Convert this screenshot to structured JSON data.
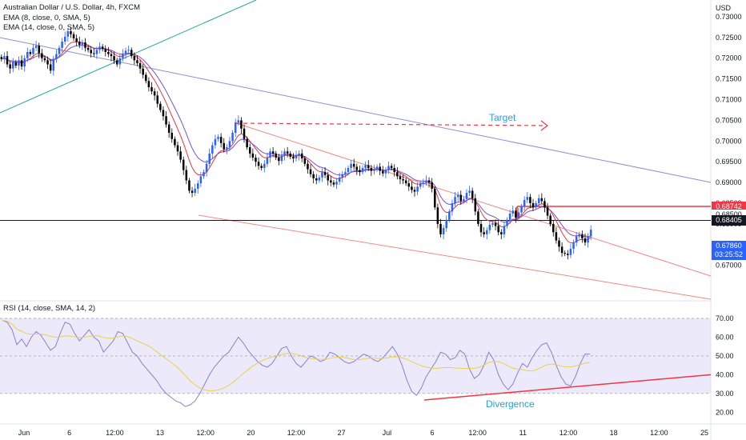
{
  "legend": {
    "symbol": "Australian Dollar / U.S. Dollar, 4h, FXCM",
    "ema_fast": "EMA (8, close, 0, SMA, 5)",
    "ema_slow": "EMA (14, close, 0, SMA, 5)",
    "rsi": "RSI (14, close, SMA, 14, 2)"
  },
  "colors": {
    "bull": "#2962ff",
    "bear": "#000000",
    "ema_fast": "#e0393e",
    "ema_slow": "#7b4fd6",
    "rsi_line": "#8a7fd1",
    "rsi_ma": "#e8d24a",
    "rsi_band": "#ece9fb",
    "target": "#f23645",
    "annotation_text": "#2a9fd6",
    "channel": "#f28b82",
    "resistance": "#8c8fd6",
    "support": "#26a69a",
    "divergence": "#f23645"
  },
  "annotations": {
    "target": "Target",
    "divergence": "Divergence"
  },
  "price_tags": {
    "level_high": "0.68742",
    "level_mid": "0.68405",
    "last_price": "0.67860",
    "countdown": "03:25:52",
    "hidden": "0.68500"
  },
  "chart_data": [
    {
      "type": "candlestick",
      "currency_label": "USD",
      "y_ticks": [
        0.73,
        0.725,
        0.72,
        0.715,
        0.71,
        0.705,
        0.7,
        0.695,
        0.69,
        0.685,
        0.68,
        0.675,
        0.67
      ],
      "y_tick_labels": [
        "0.73000",
        "0.72500",
        "0.72000",
        "0.71500",
        "0.71000",
        "0.70500",
        "0.70000",
        "0.69500",
        "0.69000",
        "0.68500",
        "0.68000",
        "0.67500",
        "0.67000"
      ],
      "x_tick_labels": [
        "Jun",
        "6",
        "12:00",
        "13",
        "12:00",
        "20",
        "12:00",
        "27",
        "Jul",
        "6",
        "12:00",
        "11",
        "12:00",
        "18",
        "12:00",
        "25"
      ],
      "ylim": [
        0.6655,
        0.7325
      ],
      "price_levels": [
        0.68742,
        0.68405
      ],
      "last_price": 0.6786,
      "approx_closes": [
        0.7198,
        0.7205,
        0.7185,
        0.7175,
        0.719,
        0.7182,
        0.7195,
        0.718,
        0.72,
        0.7215,
        0.721,
        0.7225,
        0.723,
        0.7212,
        0.72,
        0.7195,
        0.7185,
        0.717,
        0.7198,
        0.721,
        0.7225,
        0.724,
        0.7252,
        0.7265,
        0.7258,
        0.7248,
        0.724,
        0.7232,
        0.7238,
        0.7225,
        0.722,
        0.7212,
        0.721,
        0.722,
        0.7228,
        0.7222,
        0.7215,
        0.721,
        0.7205,
        0.7195,
        0.7185,
        0.72,
        0.721,
        0.7218,
        0.722,
        0.7205,
        0.7195,
        0.7188,
        0.7175,
        0.716,
        0.7145,
        0.713,
        0.712,
        0.711,
        0.709,
        0.7075,
        0.706,
        0.704,
        0.702,
        0.7005,
        0.699,
        0.6975,
        0.6955,
        0.693,
        0.6905,
        0.688,
        0.6875,
        0.6885,
        0.6898,
        0.6915,
        0.6925,
        0.6945,
        0.697,
        0.699,
        0.7005,
        0.701,
        0.6995,
        0.698,
        0.6985,
        0.7,
        0.702,
        0.7045,
        0.705,
        0.703,
        0.7005,
        0.6985,
        0.697,
        0.696,
        0.695,
        0.694,
        0.6935,
        0.6945,
        0.696,
        0.6975,
        0.697,
        0.696,
        0.6952,
        0.6965,
        0.6975,
        0.697,
        0.6962,
        0.6958,
        0.6965,
        0.697,
        0.6958,
        0.6945,
        0.6932,
        0.692,
        0.691,
        0.6905,
        0.6912,
        0.6925,
        0.6918,
        0.6905,
        0.69,
        0.6895,
        0.6902,
        0.6912,
        0.692,
        0.6925,
        0.6935,
        0.6945,
        0.6938,
        0.693,
        0.6925,
        0.6935,
        0.6942,
        0.6935,
        0.6928,
        0.6932,
        0.6938,
        0.6928,
        0.6922,
        0.693,
        0.694,
        0.6935,
        0.6925,
        0.6915,
        0.6908,
        0.6905,
        0.6898,
        0.689,
        0.6882,
        0.6878,
        0.689,
        0.6898,
        0.69,
        0.6905,
        0.69,
        0.6885,
        0.684,
        0.68,
        0.6775,
        0.679,
        0.681,
        0.683,
        0.685,
        0.6865,
        0.687,
        0.6855,
        0.686,
        0.6875,
        0.688,
        0.6862,
        0.683,
        0.68,
        0.678,
        0.6775,
        0.6785,
        0.6798,
        0.6802,
        0.6795,
        0.678,
        0.6775,
        0.6795,
        0.681,
        0.6825,
        0.6832,
        0.6815,
        0.6828,
        0.6842,
        0.6858,
        0.6865,
        0.685,
        0.684,
        0.685,
        0.6862,
        0.6855,
        0.684,
        0.682,
        0.68,
        0.678,
        0.676,
        0.6745,
        0.673,
        0.6728,
        0.6725,
        0.674,
        0.6755,
        0.677,
        0.6775,
        0.6765,
        0.6755,
        0.677,
        0.6786
      ]
    },
    {
      "type": "line",
      "name": "RSI (14, close, SMA, 14, 2)",
      "y_tick_labels": [
        "70.00",
        "60.00",
        "50.00",
        "40.00",
        "30.00",
        "20.00"
      ],
      "y_ticks": [
        70,
        60,
        50,
        40,
        30,
        20
      ],
      "ylim": [
        15,
        73
      ],
      "band": [
        30,
        70
      ],
      "divergence_line": [
        {
          "x": 0,
          "y": 26.5
        },
        {
          "x": 1,
          "y": 40
        }
      ],
      "approx_values": [
        69,
        68,
        64,
        56,
        59,
        55,
        60,
        63,
        61,
        57,
        53,
        55,
        62,
        68,
        67,
        62,
        58,
        61,
        64,
        60,
        58,
        52,
        55,
        58,
        63,
        62,
        57,
        52,
        50,
        46,
        43,
        40,
        37,
        33,
        30,
        28,
        26,
        25,
        23,
        24,
        26,
        30,
        35,
        40,
        44,
        47,
        50,
        52,
        56,
        60,
        57,
        53,
        50,
        47,
        45,
        44,
        46,
        50,
        54,
        55,
        50,
        46,
        44,
        47,
        50,
        49,
        47,
        48,
        52,
        51,
        49,
        47,
        46,
        47,
        49,
        51,
        50,
        48,
        47,
        49,
        52,
        55,
        51,
        45,
        37,
        31,
        29,
        33,
        39,
        43,
        47,
        52,
        51,
        48,
        49,
        53,
        51,
        43,
        38,
        40,
        45,
        52,
        48,
        40,
        35,
        32,
        35,
        41,
        46,
        44,
        49,
        53,
        56,
        57,
        52,
        45,
        39,
        35,
        34,
        39,
        46,
        51,
        51
      ]
    }
  ]
}
